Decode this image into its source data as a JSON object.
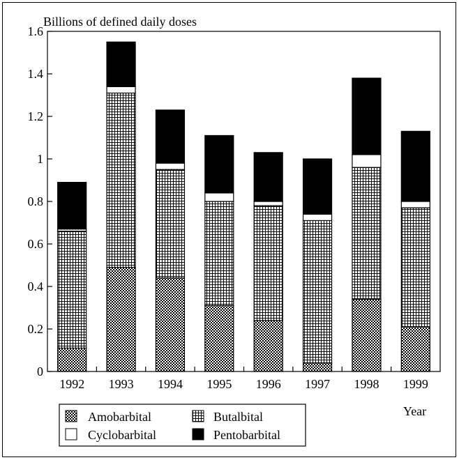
{
  "chart_data": {
    "type": "bar",
    "stacked": true,
    "ylabel": "Billions of defined daily doses",
    "xlabel": "Year",
    "ylim": [
      0,
      1.6
    ],
    "yticks": [
      "0",
      "0.2",
      "0.4",
      "0.6",
      "0.8",
      "1",
      "1.2",
      "1.4",
      "1.6"
    ],
    "categories": [
      "1992",
      "1993",
      "1994",
      "1995",
      "1996",
      "1997",
      "1998",
      "1999"
    ],
    "series": [
      {
        "name": "Amobarbital",
        "values": [
          0.11,
          0.49,
          0.44,
          0.31,
          0.24,
          0.04,
          0.34,
          0.21
        ]
      },
      {
        "name": "Butalbital",
        "values": [
          0.55,
          0.82,
          0.51,
          0.49,
          0.54,
          0.67,
          0.62,
          0.56
        ]
      },
      {
        "name": "Cyclobarbital",
        "values": [
          0.01,
          0.03,
          0.03,
          0.04,
          0.02,
          0.03,
          0.06,
          0.03
        ]
      },
      {
        "name": "Pentobarbital",
        "values": [
          0.22,
          0.21,
          0.25,
          0.27,
          0.23,
          0.26,
          0.36,
          0.33
        ]
      }
    ],
    "legend": {
      "placement": "bottom-left",
      "items": [
        "Amobarbital",
        "Butalbital",
        "Cyclobarbital",
        "Pentobarbital"
      ]
    },
    "grid": false
  }
}
